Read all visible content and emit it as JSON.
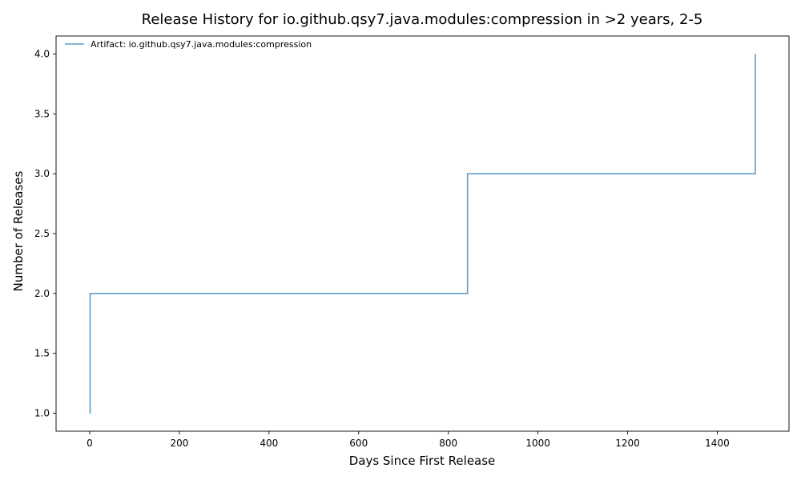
{
  "chart_data": {
    "type": "line",
    "step": "post",
    "title": "Release History for io.github.qsy7.java.modules:compression in >2 years, 2-5",
    "xlabel": "Days Since First Release",
    "ylabel": "Number of Releases",
    "xlim": [
      -75,
      1560
    ],
    "ylim": [
      0.85,
      4.15
    ],
    "xticks": [
      0,
      200,
      400,
      600,
      800,
      1000,
      1200,
      1400
    ],
    "yticks": [
      1.0,
      1.5,
      2.0,
      2.5,
      3.0,
      3.5,
      4.0
    ],
    "xtick_labels": [
      "0",
      "200",
      "400",
      "600",
      "800",
      "1000",
      "1200",
      "1400"
    ],
    "ytick_labels": [
      "1.0",
      "1.5",
      "2.0",
      "2.5",
      "3.0",
      "3.5",
      "4.0"
    ],
    "grid": false,
    "legend_position": "top-left",
    "series": [
      {
        "name": "Artifact: io.github.qsy7.java.modules:compression",
        "color": "#5b9fcf",
        "x": [
          0,
          1,
          843,
          1485
        ],
        "y": [
          1,
          2,
          3,
          4
        ]
      }
    ]
  }
}
